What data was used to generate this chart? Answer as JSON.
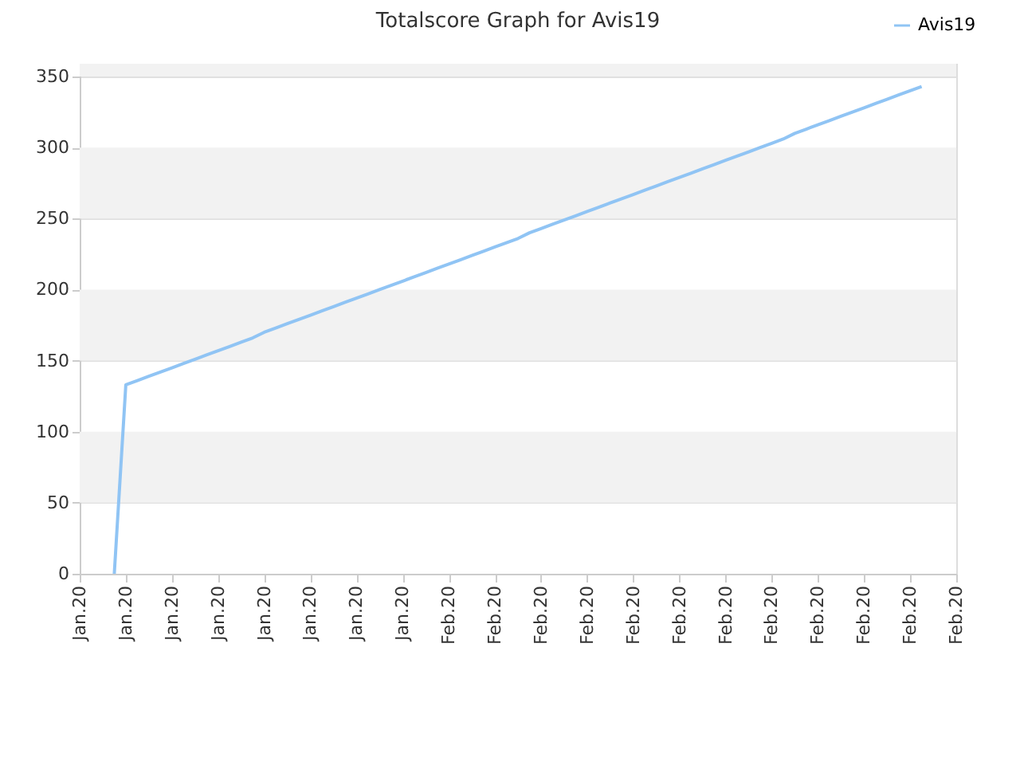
{
  "chart_data": {
    "type": "line",
    "title": "Totalscore Graph for Avis19",
    "categories": [
      "Jan.20",
      null,
      null,
      null,
      "Jan.20",
      null,
      null,
      null,
      "Jan.20",
      null,
      null,
      null,
      "Jan.20",
      null,
      null,
      null,
      "Jan.20",
      null,
      null,
      null,
      "Jan.20",
      null,
      null,
      null,
      "Jan.20",
      null,
      null,
      null,
      "Jan.20",
      null,
      null,
      null,
      "Feb.20",
      null,
      null,
      null,
      "Feb.20",
      null,
      null,
      null,
      "Feb.20",
      null,
      null,
      null,
      "Feb.20",
      null,
      null,
      null,
      "Feb.20",
      null,
      null,
      null,
      "Feb.20",
      null,
      null,
      null,
      "Feb.20",
      null,
      null,
      null,
      "Feb.20",
      null,
      null,
      null,
      "Feb.20",
      null,
      null,
      null,
      "Feb.20",
      null,
      null,
      null,
      "Feb.20",
      null,
      null,
      null,
      "Feb.20"
    ],
    "series": [
      {
        "name": "Avis19",
        "color": "#90c4f4",
        "values": [
          null,
          null,
          null,
          0,
          133,
          136,
          139,
          142,
          145,
          148,
          151,
          154,
          157,
          160,
          163,
          166,
          170,
          173,
          176,
          179,
          182,
          185,
          188,
          191,
          194,
          197,
          200,
          203,
          206,
          209,
          212,
          215,
          218,
          221,
          224,
          227,
          230,
          233,
          236,
          240,
          243,
          246,
          249,
          252,
          255,
          258,
          261,
          264,
          267,
          270,
          273,
          276,
          279,
          282,
          285,
          288,
          291,
          294,
          297,
          300,
          303,
          306,
          310,
          313,
          316,
          319,
          322,
          325,
          328,
          331,
          334,
          337,
          340,
          343,
          null,
          null,
          null
        ]
      }
    ],
    "ylim": [
      0,
      359
    ],
    "yticks": [
      0,
      50,
      100,
      150,
      200,
      250,
      300,
      350
    ],
    "bands": [
      {
        "axis": "y",
        "from": 50,
        "to": 100,
        "color": "#f2f2f2"
      },
      {
        "axis": "y",
        "from": 150,
        "to": 200,
        "color": "#f2f2f2"
      },
      {
        "axis": "y",
        "from": 250,
        "to": 300,
        "color": "#f2f2f2"
      },
      {
        "axis": "y",
        "from": 350,
        "to": 359,
        "color": "#f2f2f2"
      }
    ],
    "grid": "y",
    "legend": "top right",
    "marker": "none",
    "line_style": "solid"
  }
}
